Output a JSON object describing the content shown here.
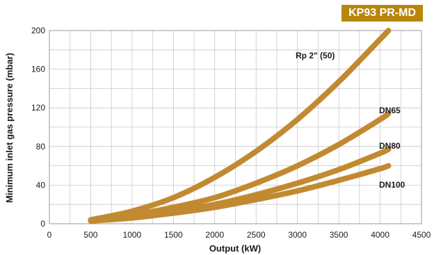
{
  "badge": "KP93 PR-MD",
  "colors": {
    "curve": "#c28a30",
    "badge": "#b8860b",
    "grid": "#c8c8c8"
  },
  "chart_data": {
    "type": "line",
    "title": "",
    "xlabel": "Output (kW)",
    "ylabel": "Minimum inlet gas pressure (mbar)",
    "xlim": [
      0,
      4500
    ],
    "ylim": [
      0,
      200
    ],
    "x_ticks": [
      0,
      500,
      1000,
      1500,
      2000,
      2500,
      3000,
      3500,
      4000,
      4500
    ],
    "y_ticks": [
      0,
      40,
      80,
      120,
      160,
      200
    ],
    "grid": true,
    "series": [
      {
        "name": "Rp 2\" (50)",
        "x": [
          500,
          1000,
          1500,
          2000,
          2500,
          3000,
          3500,
          4000,
          4100
        ],
        "y": [
          4,
          13,
          27,
          48,
          75,
          108,
          147,
          191,
          200
        ]
      },
      {
        "name": "DN65",
        "x": [
          500,
          1000,
          1500,
          2000,
          2500,
          3000,
          3500,
          4000,
          4100
        ],
        "y": [
          3,
          9,
          17,
          27,
          42,
          60,
          82,
          108,
          114
        ]
      },
      {
        "name": "DN80",
        "x": [
          500,
          1000,
          1500,
          2000,
          2500,
          3000,
          3500,
          4000,
          4100
        ],
        "y": [
          3,
          7,
          13,
          20,
          30,
          42,
          56,
          73,
          77
        ]
      },
      {
        "name": "DN100",
        "x": [
          500,
          1000,
          1500,
          2000,
          2500,
          3000,
          3500,
          4000,
          4100
        ],
        "y": [
          3,
          6,
          11,
          17,
          25,
          34,
          45,
          57,
          60
        ]
      }
    ]
  }
}
